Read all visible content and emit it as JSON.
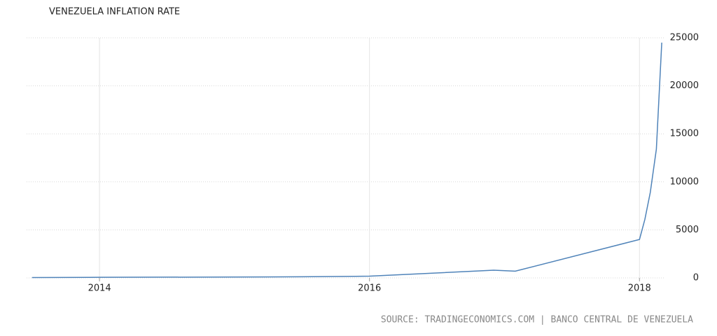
{
  "chart_data": {
    "type": "line",
    "title": "VENEZUELA INFLATION RATE",
    "source": "SOURCE: TRADINGECONOMICS.COM | BANCO CENTRAL DE VENEZUELA",
    "x": [
      2013.5,
      2014,
      2015,
      2015.5,
      2016,
      2016.92,
      2017.08,
      2018,
      2018.04,
      2018.08,
      2018.125,
      2018.165
    ],
    "series": [
      {
        "name": "Inflation Rate",
        "color": "#4f83b9",
        "values": [
          40,
          60,
          90,
          120,
          180,
          800,
          700,
          4000,
          6100,
          8900,
          13400,
          24500
        ]
      }
    ],
    "xlim": [
      2013.46,
      2018.18
    ],
    "xticks": [
      2014,
      2016,
      2018
    ],
    "ylim": [
      0,
      25000
    ],
    "yticks": [
      0,
      5000,
      10000,
      15000,
      20000,
      25000
    ],
    "grid": true
  }
}
